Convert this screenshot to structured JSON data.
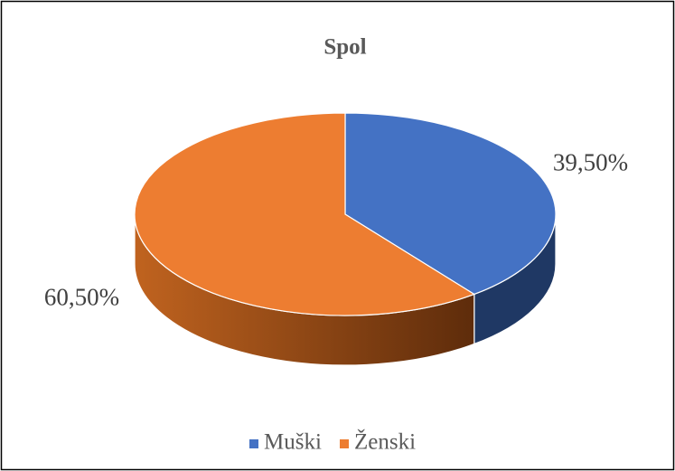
{
  "chart_data": {
    "type": "pie",
    "title": "Spol",
    "categories": [
      "Muški",
      "Ženski"
    ],
    "values": [
      39.5,
      60.5
    ],
    "value_labels": [
      "39,50%",
      "60,50%"
    ],
    "colors": [
      "#4472c4",
      "#ed7d31"
    ],
    "legend": "bottom"
  }
}
